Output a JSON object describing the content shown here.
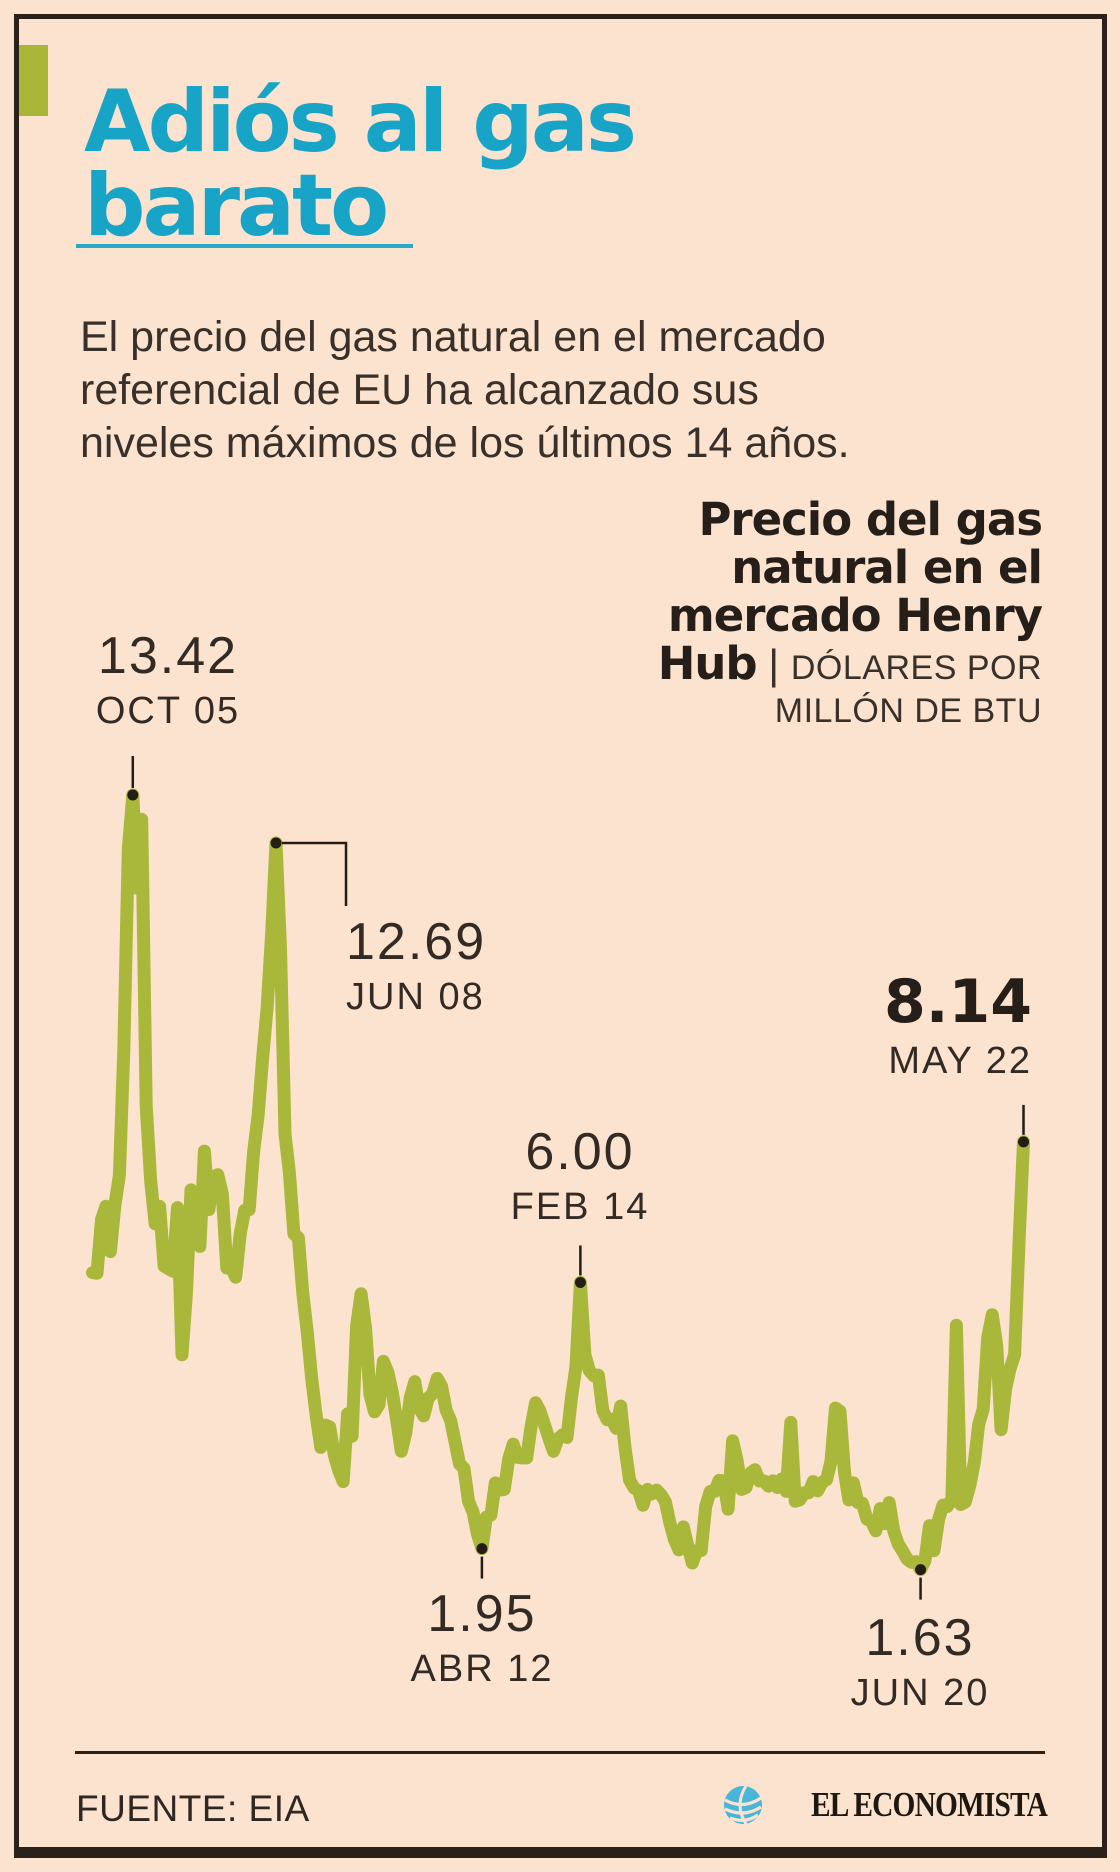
{
  "title": "Adiós al gas barato",
  "intro": "El precio del gas natural en el mercado referencial de EU ha alcanzado sus niveles máximos de los últimos 14 años.",
  "chart_title": {
    "bold": "Precio del gas natural en el mercado Henry Hub",
    "separator": " | ",
    "units": "DÓLARES POR MILLÓN DE BTU"
  },
  "annotations": [
    {
      "value": "13.42",
      "date": "OCT 05"
    },
    {
      "value": "12.69",
      "date": "JUN 08"
    },
    {
      "value": "6.00",
      "date": "FEB 14"
    },
    {
      "value": "8.14",
      "date": "MAY 22"
    },
    {
      "value": "1.95",
      "date": "ABR 12"
    },
    {
      "value": "1.63",
      "date": "JUN 20"
    }
  ],
  "source": "FUENTE: EIA",
  "brand": "EL ECONOMISTA",
  "colors": {
    "background": "#fce3d0",
    "frame": "#2a211a",
    "accent_cyan": "#18a4c6",
    "accent_olive": "#a9b637",
    "line": "#a9b83a",
    "marker": "#241c15",
    "logo_blue": "#47b6d8"
  },
  "chart_data": {
    "type": "line",
    "title": "Precio del gas natural en el mercado Henry Hub",
    "unit": "DÓLARES POR MILLÓN DE BTU",
    "frequency": "monthly",
    "x_range": [
      "ENE 2005",
      "MAY 2022"
    ],
    "ylim": [
      1.4,
      13.6
    ],
    "grid": false,
    "legend": "none",
    "values": [
      6.15,
      6.14,
      6.96,
      7.16,
      6.47,
      7.18,
      7.63,
      9.53,
      12.6,
      13.42,
      12.0,
      13.05,
      8.69,
      7.54,
      6.89,
      7.16,
      6.25,
      6.21,
      6.17,
      7.14,
      4.9,
      5.85,
      7.41,
      6.73,
      6.55,
      8.0,
      7.11,
      7.6,
      7.64,
      7.35,
      6.22,
      6.22,
      6.08,
      6.74,
      7.1,
      7.11,
      7.99,
      8.54,
      9.41,
      10.18,
      11.27,
      12.69,
      11.09,
      8.26,
      7.67,
      6.74,
      6.68,
      5.82,
      5.24,
      4.52,
      3.96,
      3.49,
      3.83,
      3.8,
      3.38,
      3.14,
      2.97,
      4.0,
      3.66,
      5.34,
      5.83,
      5.32,
      4.29,
      4.03,
      4.14,
      4.8,
      4.63,
      4.32,
      3.89,
      3.43,
      3.71,
      4.25,
      4.49,
      4.09,
      3.97,
      4.24,
      4.31,
      4.54,
      4.42,
      4.06,
      3.9,
      3.57,
      3.24,
      3.17,
      2.67,
      2.51,
      2.17,
      1.95,
      2.43,
      2.46,
      2.95,
      2.84,
      2.85,
      3.32,
      3.54,
      3.34,
      3.33,
      3.33,
      3.81,
      4.17,
      4.04,
      3.83,
      3.62,
      3.43,
      3.62,
      3.68,
      3.64,
      4.24,
      4.71,
      6.0,
      4.9,
      4.66,
      4.58,
      4.59,
      4.05,
      3.91,
      3.92,
      3.78,
      4.12,
      3.48,
      2.99,
      2.87,
      2.83,
      2.61,
      2.85,
      2.78,
      2.84,
      2.77,
      2.66,
      2.34,
      2.09,
      1.93,
      2.28,
      1.99,
      1.73,
      1.92,
      1.92,
      2.59,
      2.82,
      2.82,
      2.99,
      2.98,
      2.55,
      3.59,
      3.3,
      2.85,
      2.88,
      3.1,
      3.15,
      2.98,
      2.98,
      2.9,
      2.98,
      2.88,
      3.01,
      2.82,
      3.87,
      2.67,
      2.69,
      2.8,
      2.8,
      2.97,
      2.83,
      2.96,
      3.0,
      3.28,
      4.09,
      4.04,
      3.11,
      2.69,
      2.95,
      2.65,
      2.64,
      2.4,
      2.37,
      2.22,
      2.56,
      2.33,
      2.65,
      2.22,
      2.02,
      1.91,
      1.79,
      1.74,
      1.75,
      1.63,
      1.77,
      2.3,
      1.92,
      2.39,
      2.61,
      2.59,
      2.71,
      5.35,
      2.62,
      2.66,
      2.91,
      3.26,
      3.84,
      4.07,
      5.16,
      5.51,
      5.05,
      3.76,
      4.38,
      4.69,
      4.9,
      6.6,
      8.14
    ],
    "annotated_points": [
      {
        "index": 9,
        "value": 13.42,
        "label": "13.42",
        "date": "OCT 05"
      },
      {
        "index": 41,
        "value": 12.69,
        "label": "12.69",
        "date": "JUN 08"
      },
      {
        "index": 109,
        "value": 6.0,
        "label": "6.00",
        "date": "FEB 14"
      },
      {
        "index": 208,
        "value": 8.14,
        "label": "8.14",
        "date": "MAY 22"
      },
      {
        "index": 87,
        "value": 1.95,
        "label": "1.95",
        "date": "ABR 12"
      },
      {
        "index": 185,
        "value": 1.63,
        "label": "1.63",
        "date": "JUN 20"
      }
    ]
  }
}
